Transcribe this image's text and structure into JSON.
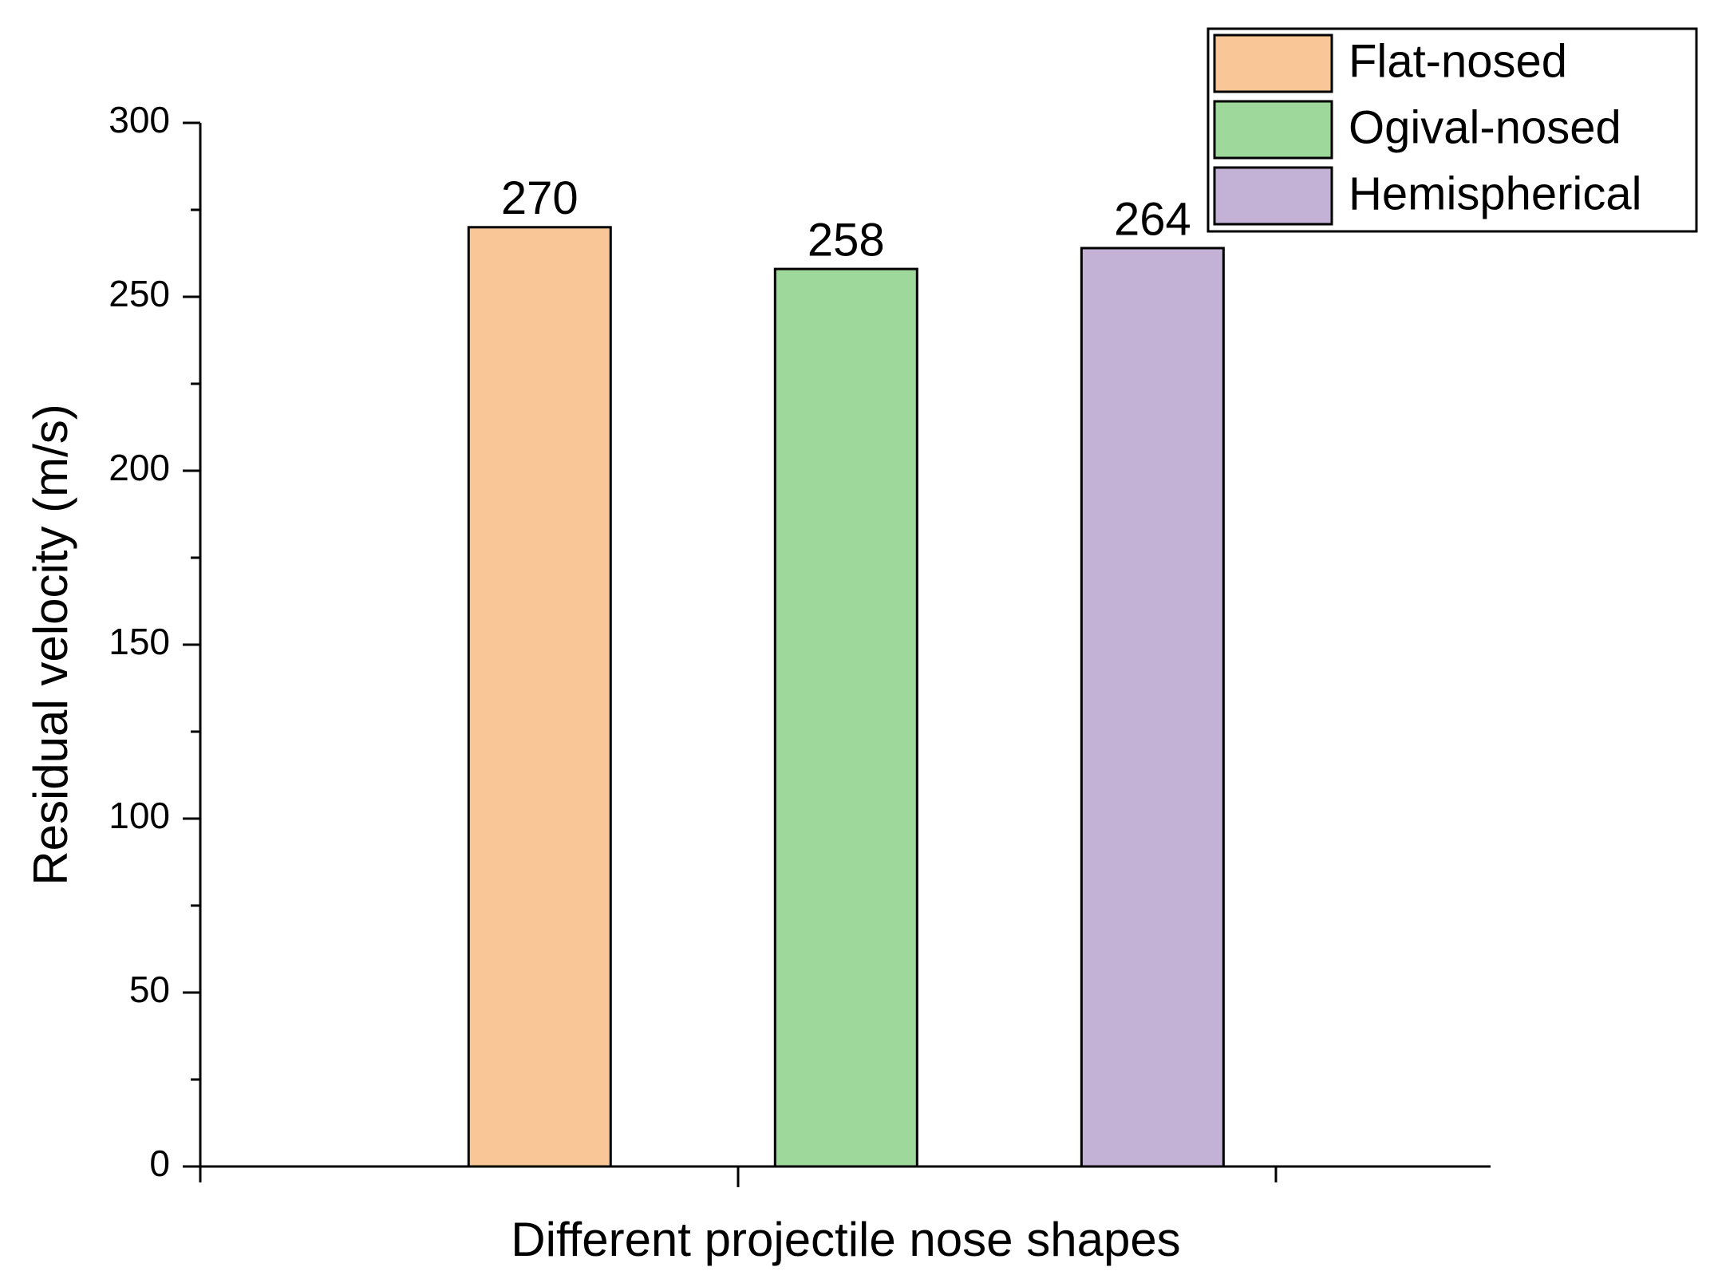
{
  "chart_data": {
    "type": "bar",
    "x_label": "Different projectile nose shapes",
    "y_label": "Residual velocity (m/s)",
    "series": [
      {
        "name": "Flat-nosed",
        "color": "#f9c797",
        "values": [
          270
        ]
      },
      {
        "name": "Ogival-nosed",
        "color": "#9fd89b",
        "values": [
          258
        ]
      },
      {
        "name": "Hemispherical",
        "color": "#c3b1d6",
        "values": [
          264
        ]
      }
    ],
    "ylim": [
      0,
      300
    ],
    "yticks": [
      0,
      50,
      100,
      150,
      200,
      250,
      300
    ],
    "legend": "top-right"
  }
}
